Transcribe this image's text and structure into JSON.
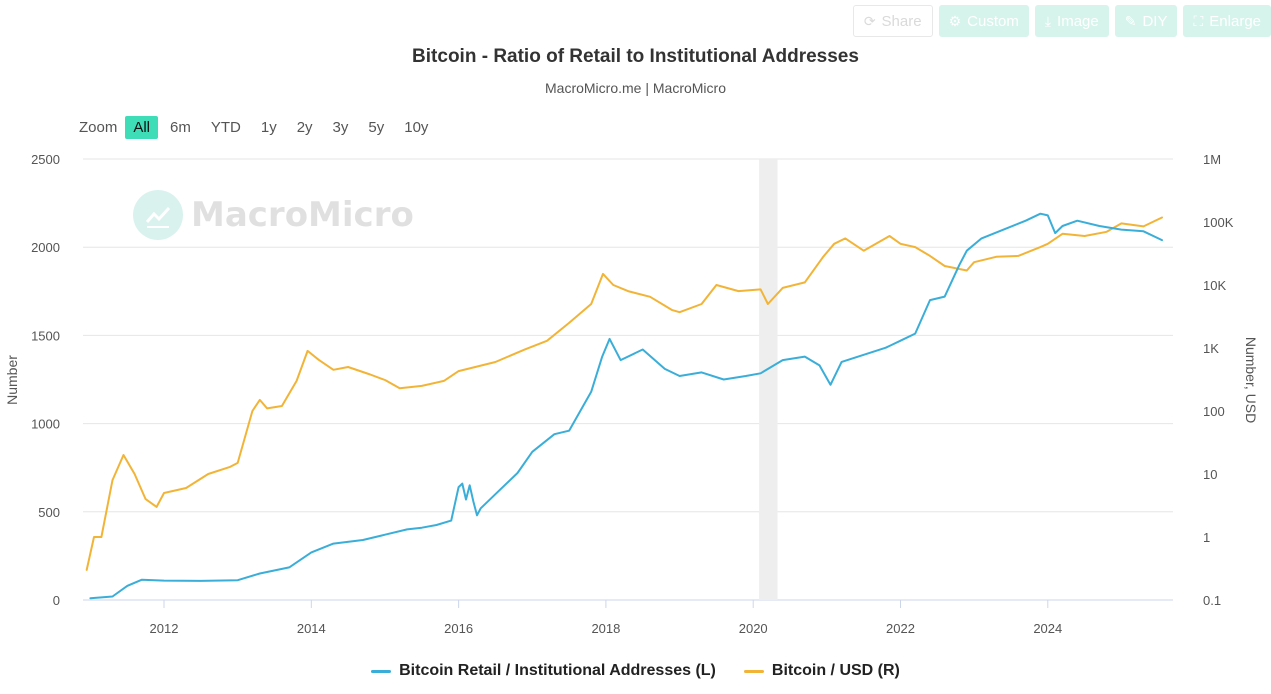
{
  "toolbar": {
    "share_label": "Share",
    "custom_label": "Custom",
    "image_label": "Image",
    "diy_label": "DIY",
    "enlarge_label": "Enlarge"
  },
  "zoom": {
    "label": "Zoom",
    "options": [
      "All",
      "6m",
      "YTD",
      "1y",
      "2y",
      "3y",
      "5y",
      "10y"
    ],
    "active": "All"
  },
  "watermark": {
    "text": "MacroMicro"
  },
  "chart_data": {
    "type": "line",
    "title": "Bitcoin - Ratio of Retail to Institutional Addresses",
    "subtitle": "MacroMicro.me | MacroMicro",
    "x_range": [
      2010.9,
      2025.7
    ],
    "x_ticks": [
      "2012",
      "2014",
      "2016",
      "2018",
      "2020",
      "2022",
      "2024"
    ],
    "y_left": {
      "label": "Number",
      "range": [
        0,
        2500
      ],
      "ticks": [
        "0",
        "500",
        "1000",
        "1500",
        "2000",
        "2500"
      ]
    },
    "y_right": {
      "label": "Number, USD",
      "scale": "log",
      "range": [
        0.1,
        1000000
      ],
      "ticks": [
        "0.1",
        "1",
        "10",
        "100",
        "1K",
        "10K",
        "100K",
        "1M"
      ]
    },
    "shaded_band": [
      2020.08,
      2020.33
    ],
    "grid": true,
    "legend_position": "bottom",
    "series": [
      {
        "name": "Bitcoin Retail / Institutional Addresses (L)",
        "axis": "left",
        "color": "#3aaed8",
        "x": [
          2011.0,
          2011.3,
          2011.5,
          2011.7,
          2012.0,
          2012.5,
          2013.0,
          2013.3,
          2013.7,
          2014.0,
          2014.3,
          2014.7,
          2015.0,
          2015.3,
          2015.5,
          2015.7,
          2015.9,
          2016.0,
          2016.05,
          2016.1,
          2016.15,
          2016.2,
          2016.25,
          2016.3,
          2016.5,
          2016.8,
          2017.0,
          2017.3,
          2017.5,
          2017.8,
          2017.95,
          2018.05,
          2018.2,
          2018.5,
          2018.8,
          2019.0,
          2019.3,
          2019.6,
          2019.9,
          2020.1,
          2020.4,
          2020.7,
          2020.9,
          2021.05,
          2021.2,
          2021.5,
          2021.8,
          2022.0,
          2022.2,
          2022.4,
          2022.6,
          2022.8,
          2022.9,
          2023.1,
          2023.4,
          2023.7,
          2023.9,
          2024.0,
          2024.1,
          2024.2,
          2024.4,
          2024.7,
          2025.0,
          2025.3,
          2025.55
        ],
        "values": [
          10,
          20,
          80,
          115,
          110,
          108,
          112,
          150,
          185,
          270,
          320,
          340,
          370,
          400,
          410,
          425,
          450,
          640,
          660,
          570,
          650,
          560,
          480,
          520,
          600,
          720,
          840,
          940,
          960,
          1180,
          1380,
          1480,
          1360,
          1420,
          1310,
          1270,
          1290,
          1250,
          1270,
          1285,
          1360,
          1380,
          1330,
          1220,
          1350,
          1390,
          1430,
          1470,
          1510,
          1700,
          1720,
          1900,
          1980,
          2050,
          2100,
          2150,
          2190,
          2180,
          2080,
          2120,
          2150,
          2120,
          2100,
          2090,
          2040
        ]
      },
      {
        "name": "Bitcoin / USD (R)",
        "axis": "right",
        "color": "#f2b437",
        "x": [
          2010.95,
          2011.05,
          2011.15,
          2011.3,
          2011.45,
          2011.6,
          2011.75,
          2011.9,
          2012.0,
          2012.3,
          2012.6,
          2012.9,
          2013.0,
          2013.2,
          2013.3,
          2013.4,
          2013.6,
          2013.8,
          2013.95,
          2014.1,
          2014.3,
          2014.5,
          2014.8,
          2015.0,
          2015.2,
          2015.5,
          2015.8,
          2016.0,
          2016.5,
          2016.9,
          2017.2,
          2017.5,
          2017.8,
          2017.96,
          2018.1,
          2018.3,
          2018.6,
          2018.9,
          2019.0,
          2019.3,
          2019.5,
          2019.8,
          2020.1,
          2020.2,
          2020.4,
          2020.7,
          2020.95,
          2021.1,
          2021.25,
          2021.5,
          2021.85,
          2022.0,
          2022.2,
          2022.4,
          2022.6,
          2022.9,
          2023.0,
          2023.3,
          2023.6,
          2023.9,
          2024.0,
          2024.2,
          2024.5,
          2024.8,
          2025.0,
          2025.3,
          2025.55
        ],
        "values": [
          0.3,
          1,
          1,
          8,
          20,
          10,
          4,
          3,
          5,
          6,
          10,
          13,
          15,
          100,
          150,
          110,
          120,
          300,
          900,
          650,
          450,
          500,
          380,
          310,
          230,
          250,
          300,
          430,
          600,
          950,
          1300,
          2500,
          5000,
          15000,
          10000,
          8000,
          6500,
          4000,
          3700,
          5000,
          10000,
          8000,
          8500,
          5000,
          9000,
          11000,
          28000,
          45000,
          55000,
          35000,
          60000,
          45000,
          40000,
          29000,
          20000,
          17000,
          23000,
          28000,
          29000,
          40000,
          45000,
          65000,
          60000,
          70000,
          95000,
          85000,
          118000
        ]
      }
    ]
  }
}
